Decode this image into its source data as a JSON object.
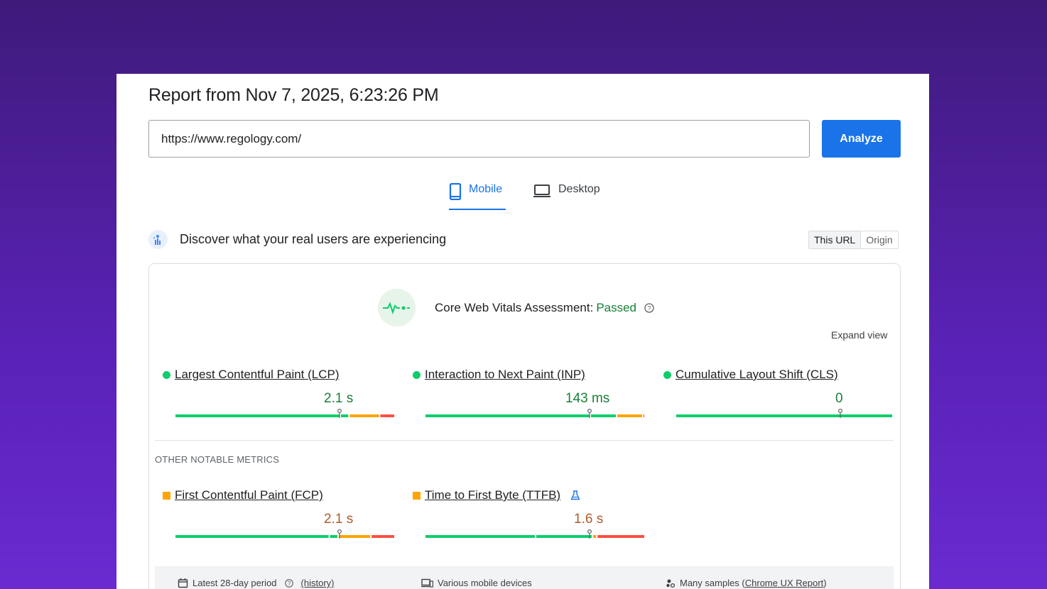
{
  "report": {
    "title": "Report from Nov 7, 2025, 6:23:26 PM"
  },
  "url_bar": {
    "value": "https://www.regology.com/",
    "analyze_label": "Analyze"
  },
  "tabs": [
    {
      "label": "Mobile",
      "active": true,
      "icon": "smartphone-icon"
    },
    {
      "label": "Desktop",
      "active": false,
      "icon": "laptop-icon"
    }
  ],
  "field_data": {
    "heading": "Discover what your real users are experiencing",
    "toggle": {
      "this_url": "This URL",
      "origin": "Origin",
      "selected": "This URL"
    }
  },
  "assessment": {
    "label": "Core Web Vitals Assessment:",
    "status": "Passed",
    "expand_label": "Expand view"
  },
  "core_metrics": [
    {
      "name": "Largest Contentful Paint (LCP)",
      "value": "2.1 s",
      "rating": "good",
      "segments": [
        0.75,
        0.04,
        0.14,
        0.07
      ],
      "marker": 0.75
    },
    {
      "name": "Interaction to Next Paint (INP)",
      "value": "143 ms",
      "rating": "good",
      "segments": [
        0.75,
        0.12,
        0.12,
        0.01
      ],
      "marker": 0.75
    },
    {
      "name": "Cumulative Layout Shift (CLS)",
      "value": "0",
      "rating": "good",
      "segments": [
        1.0,
        0,
        0,
        0
      ],
      "marker": 0.76
    }
  ],
  "other_metrics_heading": "OTHER NOTABLE METRICS",
  "other_metrics": [
    {
      "name": "First Contentful Paint (FCP)",
      "value": "2.1 s",
      "rating": "average",
      "segments": [
        0.7,
        0.04,
        0.15,
        0.11
      ],
      "marker": 0.75
    },
    {
      "name": "Time to First Byte (TTFB)",
      "value": "1.6 s",
      "rating": "average",
      "segments": [
        0.5,
        0.26,
        0.02,
        0.22
      ],
      "marker": 0.75,
      "experimental_icon": "beaker-icon"
    }
  ],
  "footer": {
    "period": "Latest 28-day period",
    "history": "(history)",
    "devices": "Various mobile devices",
    "samples_prefix": "Many samples (",
    "samples_link": "Chrome UX Report",
    "samples_suffix": ")"
  },
  "colors": {
    "good": "#0cce6b",
    "average": "#ffa400",
    "poor": "#ff4e42",
    "accent": "#1a73e8"
  }
}
